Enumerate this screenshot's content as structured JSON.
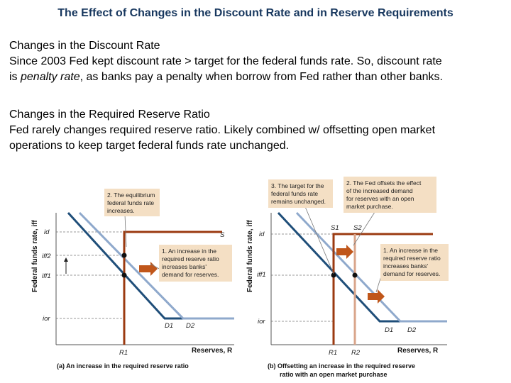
{
  "title": "The Effect of Changes in the Discount Rate and in Reserve Requirements",
  "section1": {
    "heading": "Changes in the Discount Rate",
    "line1": "Since 2003 Fed kept discount rate > target for the federal funds rate. So, discount rate",
    "line2_prefix": "is ",
    "line2_em": "penalty rate",
    "line2_suffix": ", as banks pay a penalty when borrow from Fed rather than other banks."
  },
  "section2": {
    "heading": "Changes in the Required Reserve Ratio",
    "line1": "Fed rarely changes required reserve ratio. Likely combined w/ offsetting open market",
    "line2": "operations to keep target federal funds rate unchanged."
  },
  "panel_a": {
    "ylabel": "Federal funds rate, iff",
    "xlabel": "Reserves, R",
    "tick_id": "id",
    "tick_iff2": "iff2",
    "tick_iff1": "iff1",
    "tick_ior": "ior",
    "supply_label": "S",
    "d1_label": "D1",
    "d2_label": "D2",
    "r1_label": "R1",
    "note1": [
      "2. The equilibrium",
      "federal funds rate",
      "increases."
    ],
    "note2": [
      "1. An increase in the",
      "required reserve ratio",
      "increases banks'",
      "demand for reserves."
    ],
    "caption": "(a) An increase in the required reserve ratio"
  },
  "panel_b": {
    "ylabel": "Federal funds rate, iff",
    "xlabel": "Reserves, R",
    "tick_id": "id",
    "tick_iff1": "iff1",
    "tick_ior": "ior",
    "s1_label": "S1",
    "s2_label": "S2",
    "d1_label": "D1",
    "d2_label": "D2",
    "r1_label": "R1",
    "r2_label": "R2",
    "note3": [
      "3. The target for the",
      "federal funds rate",
      "remains unchanged."
    ],
    "note2": [
      "2. The Fed offsets the effect",
      "of the increased demand",
      "for reserves with an open",
      "market purchase."
    ],
    "note1": [
      "1. An increase in the",
      "required reserve ratio",
      "increases banks'",
      "demand for reserves."
    ],
    "caption_line1": "(b) Offsetting an increase in the required reserve",
    "caption_line2": "ratio with an open market purchase"
  },
  "colors": {
    "title": "#17375e",
    "supply_curve": "#9b3a10",
    "demand_d1": "#1f4e79",
    "demand_d2": "#8fa9cc",
    "note_box": "#f4dfc4",
    "arrow": "#c0561a"
  }
}
